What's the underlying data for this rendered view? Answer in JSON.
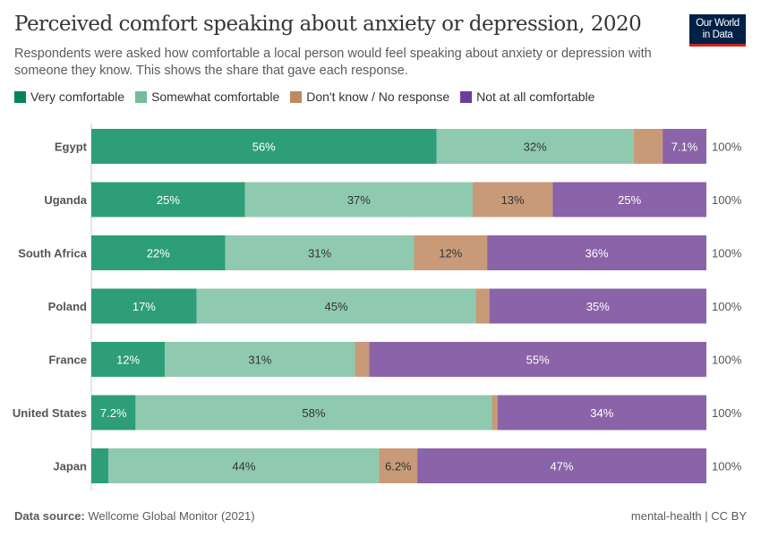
{
  "title": "Perceived comfort speaking about anxiety or depression, 2020",
  "subtitle": "Respondents were asked how comfortable a local person would feel speaking about anxiety or depression with someone they know. This shows the share that gave each response.",
  "logo": "Our World in Data",
  "footer": {
    "source_label": "Data source:",
    "source": "Wellcome Global Monitor (2021)",
    "right": "mental-health | CC BY"
  },
  "chart_data": {
    "type": "bar",
    "orientation": "horizontal-stacked",
    "categories": [
      "Egypt",
      "Uganda",
      "South Africa",
      "Poland",
      "France",
      "United States",
      "Japan"
    ],
    "series": [
      {
        "name": "Very comfortable",
        "color": "#2e9e78",
        "legend_color": "#00845a",
        "values": [
          56,
          25,
          22,
          17,
          12,
          7.2,
          2.8
        ],
        "labels": [
          "56%",
          "25%",
          "22%",
          "17%",
          "12%",
          "7.2%",
          ""
        ]
      },
      {
        "name": "Somewhat comfortable",
        "color": "#8fcab0",
        "legend_color": "#73bd9b",
        "values": [
          32,
          37,
          31,
          45,
          31,
          58,
          44
        ],
        "labels": [
          "32%",
          "37%",
          "31%",
          "45%",
          "31%",
          "58%",
          "44%"
        ]
      },
      {
        "name": "Don't know / No response",
        "color": "#c89a78",
        "legend_color": "#bf8960",
        "values": [
          4.7,
          13,
          12,
          2.2,
          2.3,
          0.9,
          6.2
        ],
        "labels": [
          "",
          "13%",
          "12%",
          "",
          "",
          "",
          "6.2%"
        ]
      },
      {
        "name": "Not at all comfortable",
        "color": "#8a63a8",
        "legend_color": "#6e3d9b",
        "values": [
          7.1,
          25,
          36,
          35,
          55,
          34,
          47
        ],
        "labels": [
          "7.1%",
          "25%",
          "36%",
          "35%",
          "55%",
          "34%",
          "47%"
        ]
      }
    ],
    "totals": [
      "100%",
      "100%",
      "100%",
      "100%",
      "100%",
      "100%",
      "100%"
    ],
    "xlim": [
      0,
      100
    ],
    "legend_position": "top-left"
  }
}
